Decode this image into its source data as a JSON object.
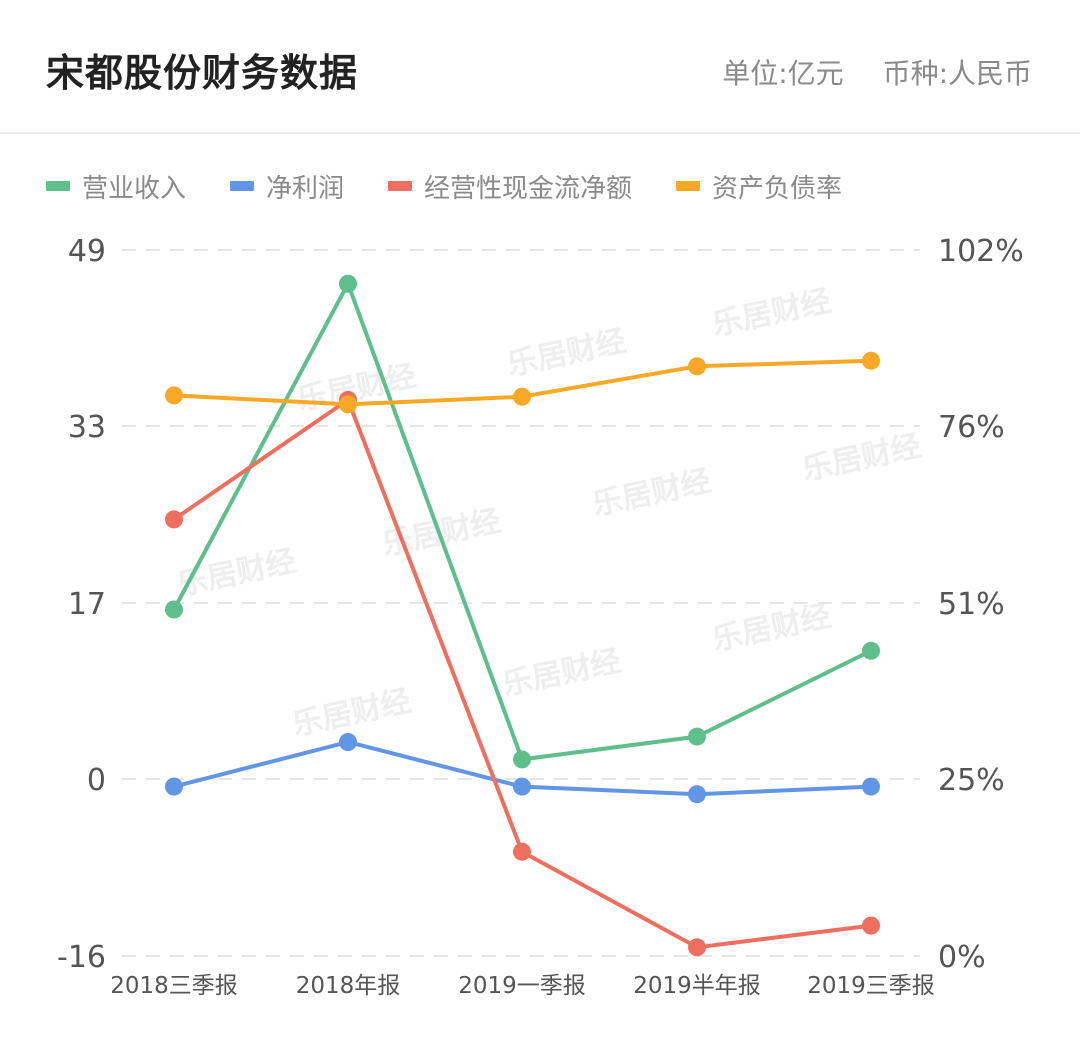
{
  "header": {
    "title": "宋都股份财务数据",
    "unit": "单位:亿元",
    "currency": "币种:人民币"
  },
  "colors": {
    "revenue": "#5fbf8c",
    "net_profit": "#6195e6",
    "cash_flow": "#ee6f5f",
    "debt_ratio": "#f6a826",
    "grid": "#e6e6e6"
  },
  "watermark": "乐居财经",
  "chart_data": {
    "type": "line",
    "categories": [
      "2018三季报",
      "2018年报",
      "2019一季报",
      "2019半年报",
      "2019三季报"
    ],
    "y_left": {
      "ticks": [
        "49",
        "33",
        "17",
        "0",
        "-16"
      ],
      "range": [
        -16,
        49
      ]
    },
    "y_right": {
      "ticks": [
        "102%",
        "76%",
        "51%",
        "25%",
        "0%"
      ],
      "range": [
        0,
        102
      ]
    },
    "grid": true,
    "legend_position": "top-left",
    "series": [
      {
        "name": "营业收入",
        "axis": "left",
        "color_key": "revenue",
        "values": [
          15.9,
          45.9,
          2.1,
          4.2,
          12.1
        ]
      },
      {
        "name": "净利润",
        "axis": "left",
        "color_key": "net_profit",
        "values": [
          -0.4,
          3.7,
          -0.4,
          -1.1,
          -0.4
        ]
      },
      {
        "name": "经营性现金流净额",
        "axis": "left",
        "color_key": "cash_flow",
        "values": [
          24.2,
          35.2,
          -6.4,
          -15.2,
          -13.2
        ]
      },
      {
        "name": "资产负债率",
        "axis": "right",
        "color_key": "debt_ratio",
        "values": [
          81,
          79.7,
          80.8,
          85.2,
          86
        ]
      }
    ]
  }
}
